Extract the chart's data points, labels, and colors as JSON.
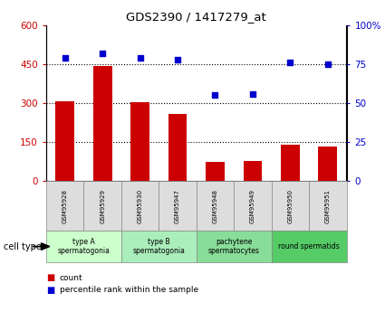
{
  "title": "GDS2390 / 1417279_at",
  "samples": [
    "GSM95928",
    "GSM95929",
    "GSM95930",
    "GSM95947",
    "GSM95948",
    "GSM95949",
    "GSM95950",
    "GSM95951"
  ],
  "counts": [
    308,
    443,
    302,
    258,
    72,
    77,
    138,
    132
  ],
  "percentiles": [
    79,
    82,
    79,
    78,
    55,
    56,
    76,
    75
  ],
  "ylim_left": [
    0,
    600
  ],
  "ylim_right": [
    0,
    100
  ],
  "yticks_left": [
    0,
    150,
    300,
    450,
    600
  ],
  "yticks_right": [
    0,
    25,
    50,
    75,
    100
  ],
  "ytick_labels_left": [
    "0",
    "150",
    "300",
    "450",
    "600"
  ],
  "ytick_labels_right": [
    "0",
    "25",
    "50",
    "75",
    "100%"
  ],
  "bar_color": "#cc0000",
  "dot_color": "#0000cc",
  "cell_groups": [
    {
      "label": "type A\nspermatogonia",
      "start": 0,
      "end": 2,
      "color": "#ccffcc"
    },
    {
      "label": "type B\nspermatogonia",
      "start": 2,
      "end": 4,
      "color": "#aaeebb"
    },
    {
      "label": "pachytene\nspermatocytes",
      "start": 4,
      "end": 6,
      "color": "#88dd99"
    },
    {
      "label": "round spermatids",
      "start": 6,
      "end": 8,
      "color": "#55cc66"
    }
  ],
  "sample_box_color": "#dddddd",
  "legend_count_color": "#cc0000",
  "legend_pct_color": "#0000cc",
  "cell_type_label": "cell type",
  "legend_count": "count",
  "legend_pct": "percentile rank within the sample"
}
